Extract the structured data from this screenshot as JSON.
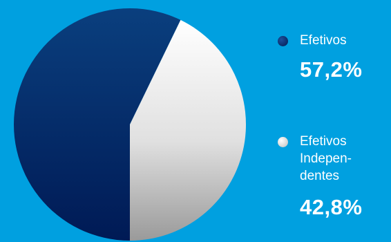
{
  "chart_data": {
    "type": "pie",
    "title": "",
    "slices": [
      {
        "label": "Efetivos",
        "value": 57.2,
        "value_label": "57,2%",
        "color": "#0a3a78"
      },
      {
        "label": "Efetivos Indepen-dentes",
        "value": 42.8,
        "value_label": "42,8%",
        "color": "#e6e6e6"
      }
    ]
  },
  "legend": {
    "items": [
      {
        "label_lines": [
          "Efetivos"
        ],
        "value_label": "57,2%",
        "dot_color": "#0b2a66"
      },
      {
        "label_lines": [
          "Efetivos",
          "Indepen-",
          "dentes"
        ],
        "value_label": "42,8%",
        "dot_color": "#dcdcdc"
      }
    ]
  },
  "colors": {
    "background": "#00a0e0",
    "dark_slice_top": "#0a3f7e",
    "dark_slice_bottom": "#001a55",
    "light_slice_top": "#ffffff",
    "light_slice_bottom": "#9a9a9a"
  }
}
